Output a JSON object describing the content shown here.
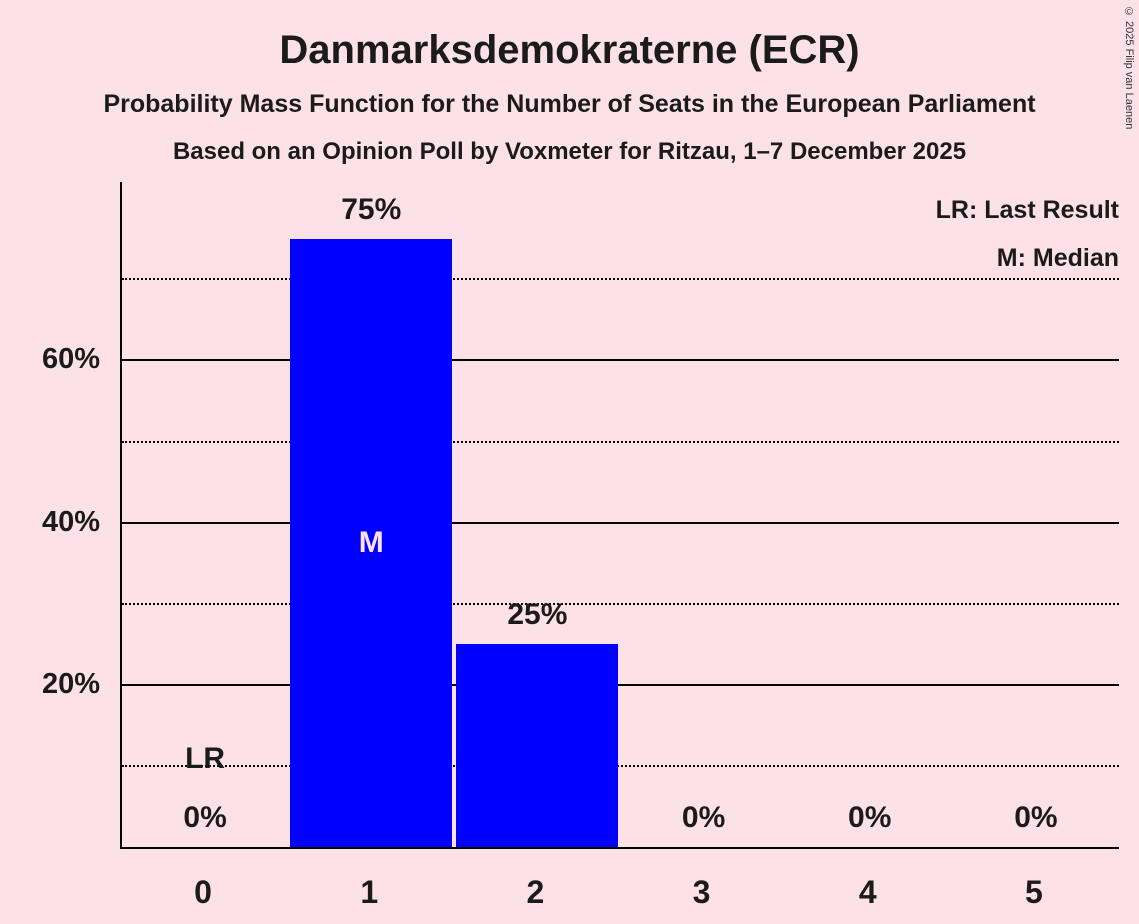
{
  "page": {
    "background": "#fce2e8"
  },
  "chart_data": {
    "type": "bar",
    "title": "Danmarksdemokraterne (ECR)",
    "subtitle1": "Probability Mass Function for the Number of Seats in the European Parliament",
    "subtitle2": "Based on an Opinion Poll by Voxmeter for Ritzau, 1–7 December 2025",
    "legend_lr": "LR: Last Result",
    "legend_m": "M: Median",
    "categories": [
      "0",
      "1",
      "2",
      "3",
      "4",
      "5"
    ],
    "values": [
      0,
      75,
      25,
      0,
      0,
      0
    ],
    "bar_labels": [
      "0%",
      "75%",
      "25%",
      "0%",
      "0%",
      "0%"
    ],
    "ylim": [
      0,
      82
    ],
    "solid_gridlines": [
      20,
      40,
      60
    ],
    "dotted_gridlines": [
      10,
      30,
      50,
      70
    ],
    "yticks": [
      {
        "value": 20,
        "label": "20%"
      },
      {
        "value": 40,
        "label": "40%"
      },
      {
        "value": 60,
        "label": "60%"
      }
    ],
    "annotations": [
      {
        "text": "LR",
        "category": 0,
        "anchor": "bottom",
        "value": 8.8,
        "color": "#1b1b1b"
      },
      {
        "text": "M",
        "category": 1,
        "anchor": "center",
        "value": 37,
        "color": "#fce2e8"
      }
    ],
    "bar_color": "#0000ff",
    "axis_color": "#000000",
    "grid_on": true,
    "legend_position": "top-right",
    "copyright": "© 2025 Filip van Laenen"
  }
}
